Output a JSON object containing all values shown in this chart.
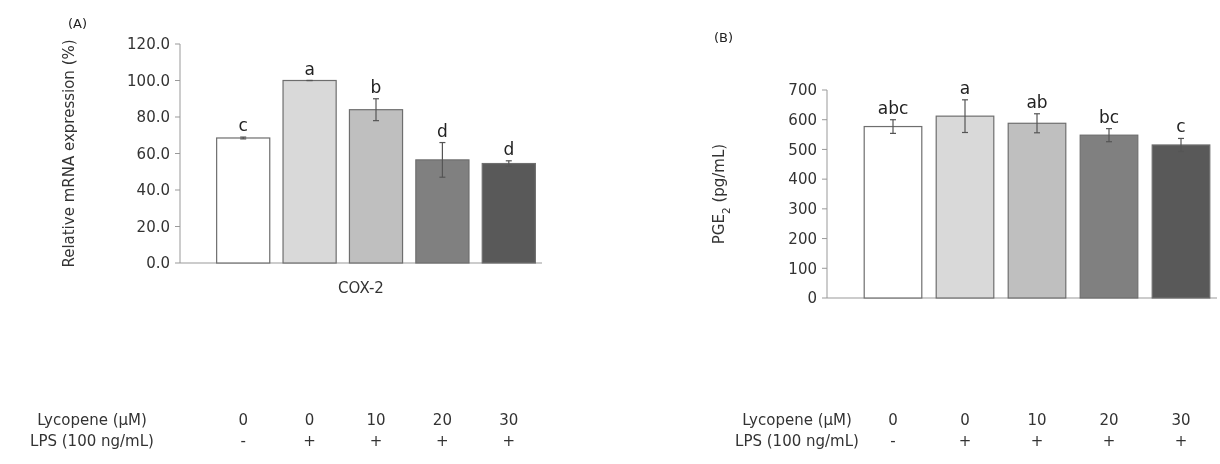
{
  "chart_data": [
    {
      "type": "bar",
      "title": "(A)",
      "xlabel": "COX-2",
      "ylabel": "Relative mRNA expression (%)",
      "categories": [
        null,
        null,
        null,
        null,
        null
      ],
      "values": [
        68.5,
        100,
        84,
        56.5,
        54.5
      ],
      "errors": [
        0.5,
        0,
        6,
        9.5,
        1.5
      ],
      "colors": [
        "#ffffff",
        "#d9d9d9",
        "#bfbfbf",
        "#808080",
        "#595959"
      ],
      "ylim": [
        0,
        120
      ],
      "yticks": [
        {
          "value": 0,
          "label": "0.0"
        },
        {
          "value": 20,
          "label": "20.0"
        },
        {
          "value": 40,
          "label": "40.0"
        },
        {
          "value": 60,
          "label": "60.0"
        },
        {
          "value": 80,
          "label": "80.0"
        },
        {
          "value": 100,
          "label": "100.0"
        },
        {
          "value": 120,
          "label": "120.0"
        }
      ],
      "grid": false,
      "annotations": [
        "c",
        "a",
        "b",
        "d",
        "d",
        "Lycopene (μM)",
        "LPS (100 ng/mL)",
        "0",
        "0",
        "10",
        "20",
        "30",
        "-",
        "+",
        "+",
        "+",
        "+"
      ]
    },
    {
      "type": "bar",
      "title": "(B)",
      "ylabel": "PGE$_{2}$ (pg/mL)",
      "categories": [
        null,
        null,
        null,
        null,
        null
      ],
      "values": [
        577,
        612,
        588,
        548,
        515
      ],
      "errors": [
        23,
        55,
        32,
        22,
        22
      ],
      "colors": [
        "#ffffff",
        "#d9d9d9",
        "#bfbfbf",
        "#808080",
        "#595959"
      ],
      "ylim": [
        0,
        700
      ],
      "yticks": [
        0,
        100,
        200,
        300,
        400,
        500,
        600,
        700
      ],
      "grid": false,
      "annotations": [
        "abc",
        "a",
        "ab",
        "bc",
        "c",
        "Lycopene (μM)",
        "LPS (100 ng/mL)",
        "0",
        "0",
        "10",
        "20",
        "30",
        "-",
        "+",
        "+",
        "+",
        "+"
      ]
    }
  ]
}
